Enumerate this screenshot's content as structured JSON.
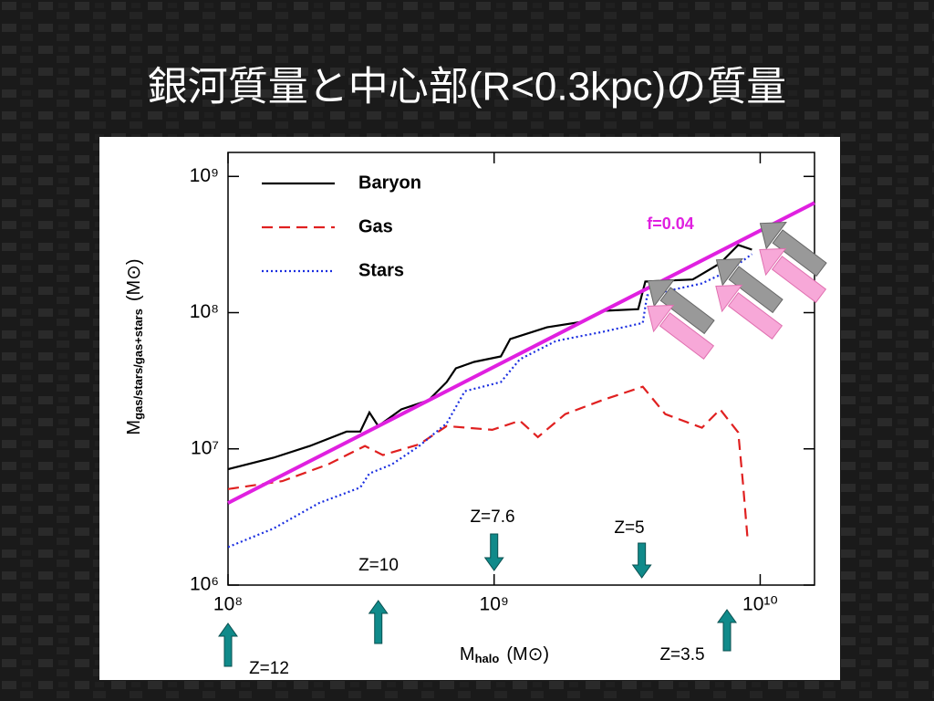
{
  "slide_title": "銀河質量と中心部(R<0.3kpc)の質量",
  "chart_data": {
    "type": "line",
    "xscale": "log",
    "yscale": "log",
    "xlim": [
      100000000,
      16000000000
    ],
    "ylim": [
      1000000,
      1500000000
    ],
    "xticks": [
      {
        "value": 100000000,
        "label": "10⁸"
      },
      {
        "value": 1000000000,
        "label": "10⁹"
      },
      {
        "value": 10000000000,
        "label": "10¹⁰"
      }
    ],
    "yticks": [
      {
        "value": 1000000,
        "label": "10⁶"
      },
      {
        "value": 10000000,
        "label": "10⁷"
      },
      {
        "value": 100000000,
        "label": "10⁸"
      },
      {
        "value": 1000000000,
        "label": "10⁹"
      }
    ],
    "xlabel": {
      "symbol": "M",
      "subscript": "halo",
      "unit": "(M⊙)"
    },
    "ylabel": {
      "symbol": "M",
      "subscript": "gas/stars/gas+stars",
      "unit": "(M⊙)"
    },
    "legend": "upper left",
    "series": [
      {
        "name": "Baryon",
        "color": "#000000",
        "dash": "solid",
        "x": [
          100000000,
          148000000,
          203000000,
          279000000,
          314000000,
          340000000,
          367000000,
          448000000,
          567000000,
          663000000,
          718000000,
          841000000,
          1060000000,
          1150000000,
          1580000000,
          2170000000,
          2540000000,
          3480000000,
          3700000000,
          5580000000,
          7070000000,
          8270000000,
          9310000000
        ],
        "values": [
          7100000,
          8600000,
          10500000,
          13400000,
          13400000,
          18500000,
          14700000,
          19500000,
          22700000,
          30900000,
          39000000,
          43500000,
          47700000,
          64000000,
          78000000,
          86000000,
          103000000,
          106000000,
          169000000,
          175000000,
          230000000,
          314000000,
          290000000
        ]
      },
      {
        "name": "Gas",
        "color": "#e02020",
        "dash": "dashed",
        "x": [
          100000000,
          160000000,
          238000000,
          327000000,
          382000000,
          523000000,
          663000000,
          984000000,
          1250000000,
          1460000000,
          1850000000,
          2540000000,
          3620000000,
          4400000000,
          6040000000,
          7070000000,
          8270000000,
          8610000000,
          8960000000
        ],
        "values": [
          5070000,
          5800000,
          7700000,
          10500000,
          9000000,
          10800000,
          14700000,
          13800000,
          16100000,
          12200000,
          18000000,
          22700000,
          28600000,
          18000000,
          14300000,
          19500000,
          13200000,
          5650000,
          2230000
        ]
      },
      {
        "name": "Stars",
        "color": "#1a2ee0",
        "dash": "dotted",
        "x": [
          100000000,
          148000000,
          220000000,
          314000000,
          340000000,
          413000000,
          523000000,
          663000000,
          776000000,
          1060000000,
          1250000000,
          1710000000,
          2540000000,
          3620000000,
          3760000000,
          6040000000,
          7660000000,
          9310000000
        ],
        "values": [
          1900000,
          2600000,
          4000000,
          5200000,
          6600000,
          7700000,
          10500000,
          15400000,
          26500000,
          30900000,
          45500000,
          62000000,
          72000000,
          84000000,
          134000000,
          164000000,
          204000000,
          269000000
        ]
      }
    ],
    "fit": {
      "label": "f=0.04",
      "color": "#e020e0",
      "x": [
        100000000,
        16000000000
      ],
      "values": [
        4000000,
        640000000
      ]
    },
    "annotations": [
      {
        "text": "Z=12",
        "x": 100000000,
        "direction": "up"
      },
      {
        "text": "Z=10",
        "x": 367000000,
        "direction": "up"
      },
      {
        "text": "Z=7.6",
        "x": 1000000000,
        "direction": "down"
      },
      {
        "text": "Z=5",
        "x": 3590000000,
        "direction": "down"
      },
      {
        "text": "Z=3.5",
        "x": 7500000000,
        "direction": "up"
      }
    ]
  }
}
